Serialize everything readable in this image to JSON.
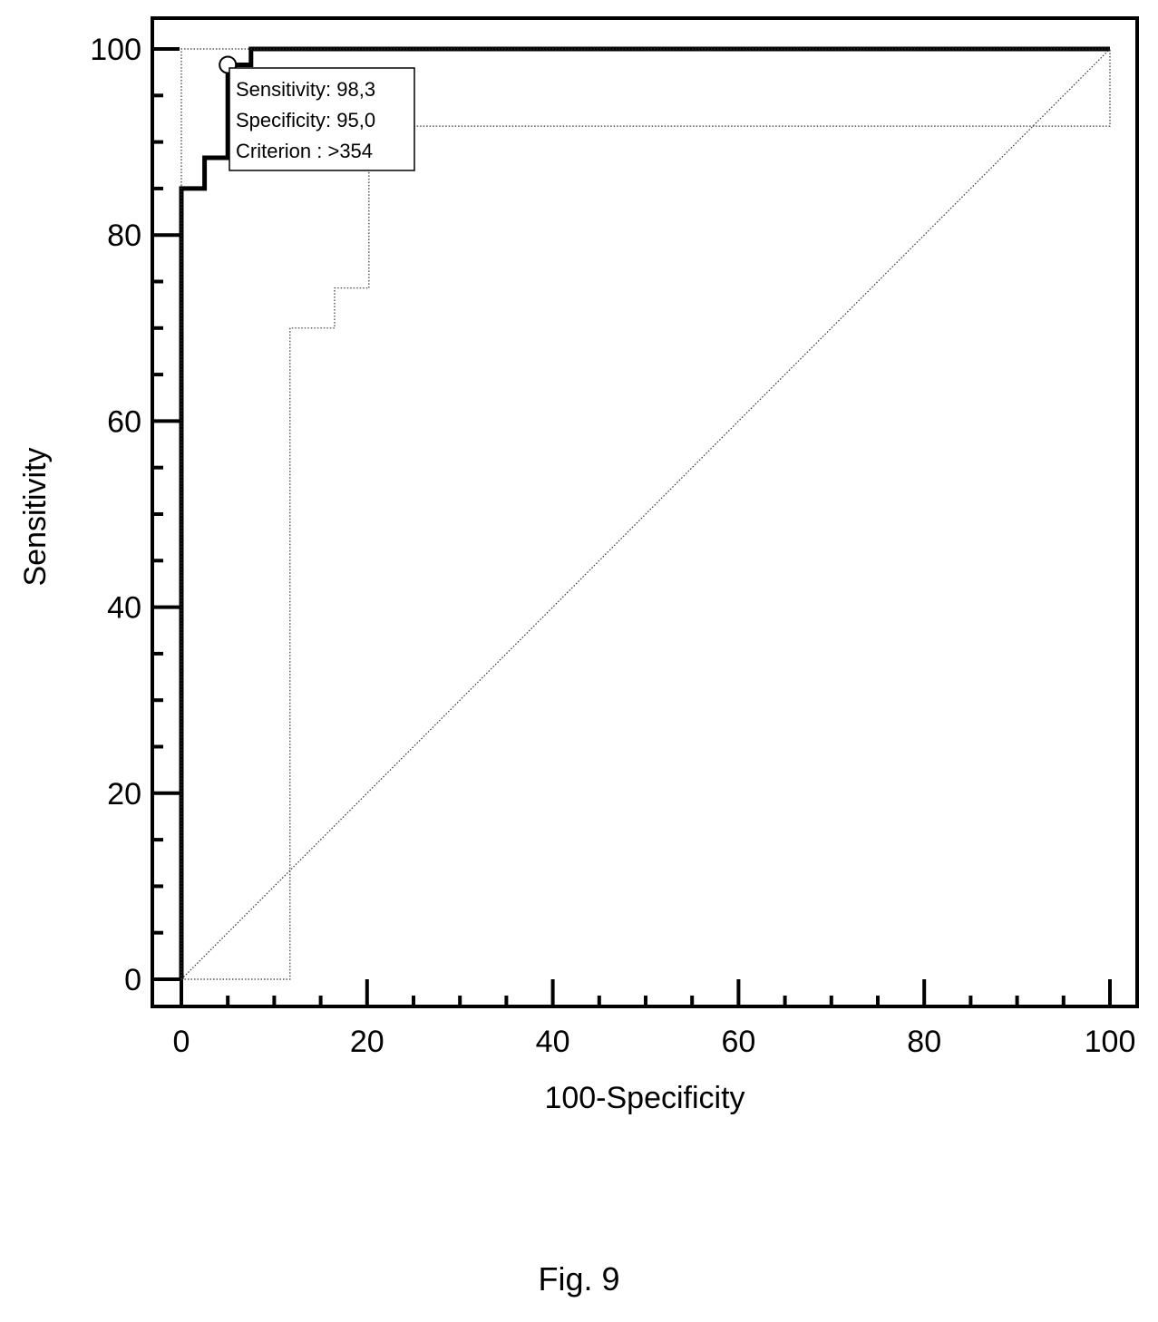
{
  "figure": {
    "caption": "Fig. 9"
  },
  "chart_data": {
    "type": "line",
    "xlabel": "100-Specificity",
    "ylabel": "Sensitivity",
    "xlim": [
      0,
      100
    ],
    "ylim": [
      0,
      100
    ],
    "xticks": [
      0,
      20,
      40,
      60,
      80,
      100
    ],
    "yticks": [
      0,
      20,
      40,
      60,
      80,
      100
    ],
    "grid": false,
    "series": [
      {
        "role": "roc-curve",
        "style": "thick-solid",
        "x": [
          0,
          0,
          2.5,
          2.5,
          5,
          5,
          7.5,
          7.5,
          100
        ],
        "y": [
          0,
          85,
          85,
          88.3,
          88.3,
          98.3,
          98.3,
          100,
          100
        ]
      },
      {
        "role": "confidence-bound-upper",
        "style": "dotted",
        "x": [
          0,
          0,
          7,
          7,
          100
        ],
        "y": [
          0,
          100,
          100,
          100,
          100
        ]
      },
      {
        "role": "confidence-bound-lower",
        "style": "dotted",
        "x": [
          0,
          11.7,
          11.7,
          16.5,
          16.5,
          20.2,
          20.2,
          25,
          25,
          100,
          100
        ],
        "y": [
          0,
          0,
          70,
          70,
          74.3,
          74.3,
          88,
          88,
          91.7,
          91.7,
          100
        ]
      },
      {
        "role": "reference-diagonal",
        "style": "dotted",
        "x": [
          0,
          100
        ],
        "y": [
          0,
          100
        ]
      }
    ],
    "optimal_point": {
      "x": 5,
      "y": 98.3
    },
    "annotation": {
      "lines": [
        "Sensitivity: 98,3",
        "Specificity: 95,0",
        "Criterion : >354"
      ]
    }
  }
}
